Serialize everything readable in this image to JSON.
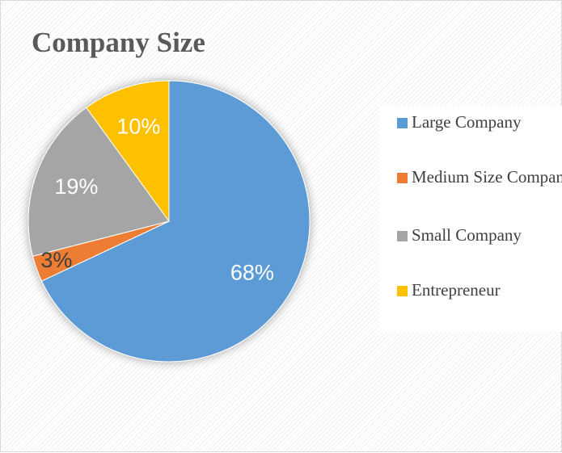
{
  "chart_data": {
    "type": "pie",
    "title": "Company Size",
    "categories": [
      "Large Company",
      "Medium Size Company",
      "Small Company",
      "Entrepreneur"
    ],
    "values": [
      68,
      3,
      19,
      10
    ],
    "value_labels": [
      "68%",
      "3%",
      "19%",
      "10%"
    ],
    "colors": [
      "#5b9bd5",
      "#ed7d31",
      "#a5a5a5",
      "#ffc000"
    ],
    "legend": "right"
  }
}
